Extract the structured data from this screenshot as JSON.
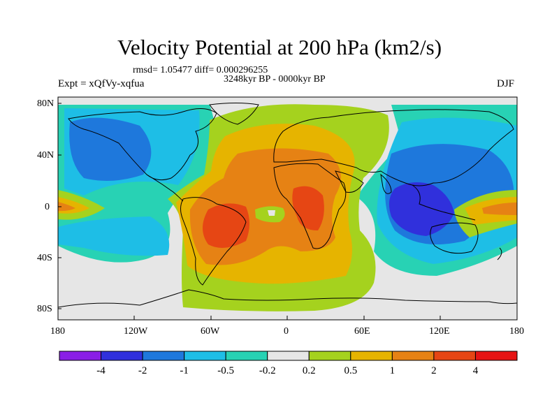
{
  "title": "Velocity Potential at 200 hPa (km2/s)",
  "stats_line": "rmsd= 1.05477 diff= 0.000296255",
  "period": "3248kyr BP - 0000kyr BP",
  "left_string": "Expt = xQfVy-xqfua",
  "right_string": "DJF",
  "lat_labels": [
    "80N",
    "40N",
    "0",
    "40S",
    "80S"
  ],
  "lon_labels": [
    "180",
    "120W",
    "60W",
    "0",
    "60E",
    "120E",
    "180"
  ],
  "colorbar": {
    "labels": [
      "-4",
      "-2",
      "-1",
      "-0.5",
      "-0.2",
      "0.2",
      "0.5",
      "1",
      "2",
      "4"
    ],
    "colors": [
      "#8a1ee6",
      "#3030dc",
      "#1e78dc",
      "#1ebee6",
      "#28d2b4",
      "#e6e6e6",
      "#a5d21e",
      "#e6b400",
      "#e68214",
      "#e64614",
      "#e61414"
    ]
  }
}
